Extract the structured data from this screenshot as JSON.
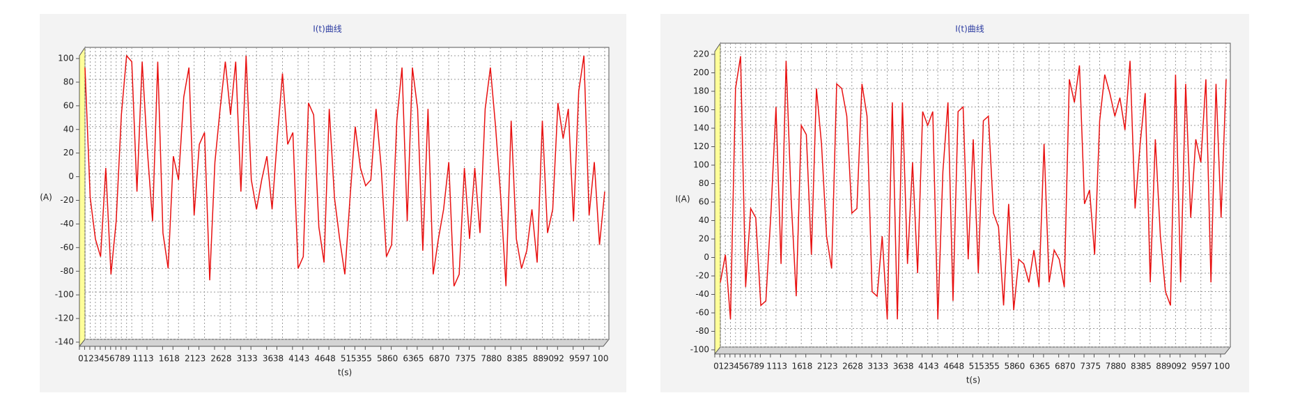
{
  "chart_data": [
    {
      "type": "line",
      "title": "I(t)曲线",
      "x_label": "t(s)",
      "y_label": "(A)",
      "x": [
        0,
        1,
        2,
        3,
        4,
        5,
        6,
        7,
        8,
        9,
        10,
        11,
        12,
        13,
        14,
        15,
        16,
        17,
        18,
        19,
        20,
        21,
        22,
        23,
        24,
        25,
        26,
        27,
        28,
        29,
        30,
        31,
        32,
        33,
        34,
        35,
        36,
        37,
        38,
        39,
        40,
        41,
        42,
        43,
        44,
        45,
        46,
        47,
        48,
        49,
        50,
        51,
        52,
        53,
        54,
        55,
        56,
        57,
        58,
        59,
        60,
        61,
        62,
        63,
        64,
        65,
        66,
        67,
        68,
        69,
        70,
        71,
        72,
        73,
        74,
        75,
        76,
        77,
        78,
        79,
        80,
        81,
        82,
        83,
        84,
        85,
        86,
        87,
        88,
        89,
        90,
        91,
        92,
        93,
        94,
        95,
        96,
        97,
        98,
        99,
        100
      ],
      "xlim": [
        0,
        100
      ],
      "xticks": [
        0,
        1,
        2,
        3,
        4,
        5,
        6,
        7,
        8,
        9,
        11,
        13,
        16,
        18,
        21,
        23,
        26,
        28,
        31,
        33,
        36,
        38,
        41,
        43,
        46,
        48,
        51,
        53,
        55,
        58,
        60,
        63,
        65,
        68,
        70,
        73,
        75,
        78,
        80,
        83,
        85,
        88,
        90,
        92,
        95,
        97,
        100
      ],
      "ylim": [
        -140,
        100
      ],
      "yticks": [
        -140,
        -120,
        -100,
        -80,
        -60,
        -40,
        -20,
        0,
        20,
        40,
        60,
        80,
        100
      ],
      "grid": true,
      "series": [
        {
          "color": "#e81010",
          "values": [
            90,
            -20,
            -55,
            -70,
            5,
            -85,
            -40,
            50,
            100,
            95,
            -15,
            95,
            20,
            -40,
            95,
            -50,
            -80,
            15,
            -5,
            65,
            90,
            -35,
            25,
            35,
            -90,
            10,
            55,
            95,
            50,
            95,
            -15,
            100,
            -5,
            -30,
            -5,
            15,
            -30,
            30,
            85,
            25,
            35,
            -80,
            -70,
            60,
            50,
            -45,
            -75,
            55,
            -20,
            -55,
            -85,
            -20,
            40,
            5,
            -10,
            -5,
            55,
            5,
            -70,
            -60,
            45,
            90,
            -40,
            90,
            55,
            -65,
            55,
            -85,
            -55,
            -30,
            10,
            -95,
            -85,
            5,
            -55,
            5,
            -50,
            55,
            90,
            40,
            -20,
            -95,
            45,
            -55,
            -80,
            -65,
            -30,
            -75,
            45,
            -50,
            -30,
            60,
            30,
            55,
            -40,
            70,
            100,
            -35,
            10,
            -60,
            -15
          ]
        }
      ]
    },
    {
      "type": "line",
      "title": "I(t)曲线",
      "x_label": "t(s)",
      "y_label": "I(A)",
      "x": [
        0,
        1,
        2,
        3,
        4,
        5,
        6,
        7,
        8,
        9,
        10,
        11,
        12,
        13,
        14,
        15,
        16,
        17,
        18,
        19,
        20,
        21,
        22,
        23,
        24,
        25,
        26,
        27,
        28,
        29,
        30,
        31,
        32,
        33,
        34,
        35,
        36,
        37,
        38,
        39,
        40,
        41,
        42,
        43,
        44,
        45,
        46,
        47,
        48,
        49,
        50,
        51,
        52,
        53,
        54,
        55,
        56,
        57,
        58,
        59,
        60,
        61,
        62,
        63,
        64,
        65,
        66,
        67,
        68,
        69,
        70,
        71,
        72,
        73,
        74,
        75,
        76,
        77,
        78,
        79,
        80,
        81,
        82,
        83,
        84,
        85,
        86,
        87,
        88,
        89,
        90,
        91,
        92,
        93,
        94,
        95,
        96,
        97,
        98,
        99,
        100
      ],
      "xlim": [
        0,
        100
      ],
      "xticks": [
        0,
        1,
        2,
        3,
        4,
        5,
        6,
        7,
        8,
        9,
        11,
        13,
        16,
        18,
        21,
        23,
        26,
        28,
        31,
        33,
        36,
        38,
        41,
        43,
        46,
        48,
        51,
        53,
        55,
        58,
        60,
        63,
        65,
        68,
        70,
        73,
        75,
        78,
        80,
        83,
        85,
        88,
        90,
        92,
        95,
        97,
        100
      ],
      "ylim": [
        -100,
        220
      ],
      "yticks": [
        -100,
        -80,
        -60,
        -40,
        -20,
        0,
        20,
        40,
        60,
        80,
        100,
        120,
        140,
        160,
        180,
        200,
        220
      ],
      "grid": true,
      "series": [
        {
          "color": "#e81010",
          "values": [
            -30,
            0,
            -70,
            180,
            215,
            -35,
            50,
            40,
            -55,
            -50,
            45,
            160,
            -10,
            210,
            60,
            -45,
            140,
            130,
            0,
            180,
            120,
            20,
            -15,
            185,
            180,
            150,
            45,
            50,
            185,
            150,
            -40,
            -45,
            20,
            -70,
            165,
            -70,
            165,
            -10,
            100,
            -20,
            155,
            140,
            155,
            -70,
            90,
            165,
            -50,
            155,
            160,
            -5,
            125,
            -20,
            145,
            150,
            45,
            30,
            -55,
            55,
            -60,
            -5,
            -10,
            -30,
            5,
            -35,
            120,
            -30,
            5,
            -5,
            -35,
            190,
            165,
            205,
            55,
            70,
            0,
            145,
            195,
            175,
            150,
            170,
            135,
            210,
            50,
            120,
            175,
            -30,
            125,
            20,
            -40,
            -55,
            195,
            -30,
            185,
            40,
            125,
            100,
            190,
            -30,
            185,
            40,
            190
          ]
        }
      ]
    }
  ]
}
